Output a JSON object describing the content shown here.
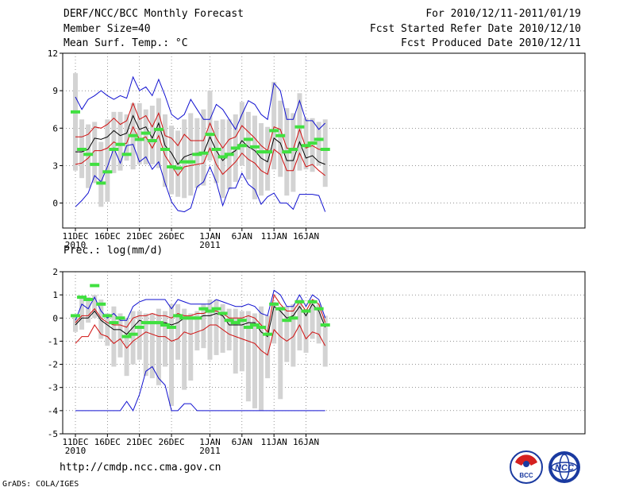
{
  "header": {
    "left": [
      "DERF/NCC/BCC Monthly Forecast",
      "Member Size=40",
      "Mean Surf. Temp.: °C"
    ],
    "right": [
      "For 2010/12/11-2011/01/19",
      "Fcst Started Refer Date 2010/12/10",
      "Fcst Produced Date 2010/12/11"
    ]
  },
  "prec_label": "Prec.: log(mm/d)",
  "footer": {
    "url": "http://cmdp.ncc.cma.gov.cn",
    "grads": "GrADS: COLA/IGES"
  },
  "logos": {
    "bcc": "BCC",
    "ncc": "NCC"
  },
  "colors": {
    "max_min": "#1010d0",
    "pct": "#d01010",
    "median": "#000000",
    "bar": "#d3d3d3",
    "obs": "#40e040",
    "grid": "#555555"
  },
  "x_ticks": [
    {
      "day": 0,
      "label": "11DEC",
      "sub": "2010"
    },
    {
      "day": 5,
      "label": "16DEC",
      "sub": ""
    },
    {
      "day": 10,
      "label": "21DEC",
      "sub": ""
    },
    {
      "day": 15,
      "label": "26DEC",
      "sub": ""
    },
    {
      "day": 21,
      "label": "1JAN",
      "sub": "2011"
    },
    {
      "day": 26,
      "label": "6JAN",
      "sub": ""
    },
    {
      "day": 31,
      "label": "11JAN",
      "sub": ""
    },
    {
      "day": 36,
      "label": "16JAN",
      "sub": ""
    }
  ],
  "chart_data": [
    {
      "type": "box-line",
      "title": "Mean Surf. Temp.: °C",
      "ylim": [
        -2,
        12
      ],
      "yticks": [
        0,
        3,
        6,
        9,
        12
      ],
      "days": 40,
      "series": [
        {
          "name": "max",
          "values": [
            8.5,
            7.5,
            8.3,
            8.6,
            9.0,
            8.6,
            8.3,
            8.6,
            8.4,
            10.1,
            9.0,
            9.3,
            8.6,
            9.9,
            8.6,
            7.1,
            6.7,
            7.1,
            8.3,
            7.5,
            6.7,
            6.7,
            7.9,
            7.5,
            6.7,
            5.9,
            7.1,
            8.2,
            7.9,
            7.1,
            6.7,
            9.6,
            9.0,
            6.7,
            6.7,
            8.2,
            6.6,
            6.6,
            5.9,
            6.4
          ]
        },
        {
          "name": "p90",
          "values": [
            5.3,
            5.3,
            5.5,
            6.1,
            6.0,
            6.3,
            6.8,
            6.3,
            6.6,
            8.0,
            6.7,
            7.0,
            6.1,
            7.2,
            5.4,
            5.2,
            4.6,
            5.5,
            5.0,
            5.0,
            5.0,
            6.4,
            5.2,
            4.4,
            5.1,
            5.3,
            6.2,
            5.7,
            5.2,
            4.6,
            4.2,
            6.1,
            5.9,
            4.4,
            4.3,
            5.9,
            4.4,
            4.6,
            4.3,
            4.3
          ]
        },
        {
          "name": "median",
          "values": [
            4.1,
            4.1,
            4.3,
            5.2,
            5.1,
            5.3,
            5.8,
            5.4,
            5.6,
            7.0,
            5.9,
            6.1,
            5.2,
            6.4,
            4.6,
            4.0,
            3.1,
            3.7,
            3.9,
            4.0,
            4.0,
            5.3,
            4.2,
            3.4,
            3.9,
            4.2,
            5.0,
            4.5,
            4.2,
            3.6,
            3.3,
            5.2,
            4.8,
            3.4,
            3.4,
            4.9,
            3.6,
            3.8,
            3.3,
            3.1
          ]
        },
        {
          "name": "p10",
          "values": [
            3.1,
            3.2,
            3.6,
            4.2,
            4.2,
            4.4,
            4.9,
            4.6,
            4.8,
            6.1,
            5.1,
            5.3,
            4.4,
            5.4,
            3.8,
            3.0,
            2.2,
            2.9,
            3.0,
            3.1,
            3.2,
            4.4,
            3.1,
            2.3,
            2.8,
            3.3,
            4.0,
            3.5,
            3.2,
            2.6,
            2.3,
            4.3,
            3.9,
            2.6,
            2.6,
            4.0,
            2.9,
            3.1,
            2.6,
            2.2
          ]
        },
        {
          "name": "min",
          "values": [
            -0.3,
            0.2,
            0.8,
            2.2,
            1.7,
            2.9,
            4.4,
            3.2,
            4.6,
            4.7,
            3.3,
            3.7,
            2.7,
            3.3,
            1.6,
            0.1,
            -0.6,
            -0.7,
            -0.4,
            1.3,
            1.7,
            2.9,
            1.7,
            -0.2,
            1.2,
            1.2,
            2.4,
            1.5,
            1.1,
            -0.1,
            0.5,
            0.8,
            0.0,
            0.0,
            -0.5,
            0.7,
            0.7,
            0.7,
            0.6,
            -0.7
          ]
        }
      ],
      "bars": [
        [
          2.6,
          10.4
        ],
        [
          2.0,
          6.7
        ],
        [
          1.2,
          6.3
        ],
        [
          1.6,
          6.5
        ],
        [
          -0.3,
          4.9
        ],
        [
          0.1,
          6.7
        ],
        [
          2.4,
          7.3
        ],
        [
          2.6,
          7.3
        ],
        [
          3.4,
          7.1
        ],
        [
          2.7,
          8.0
        ],
        [
          3.1,
          8.0
        ],
        [
          3.1,
          7.5
        ],
        [
          3.1,
          7.8
        ],
        [
          2.8,
          8.4
        ],
        [
          1.3,
          7.1
        ],
        [
          0.7,
          6.2
        ],
        [
          0.5,
          5.8
        ],
        [
          0.4,
          6.7
        ],
        [
          0.6,
          7.2
        ],
        [
          1.2,
          6.8
        ],
        [
          1.4,
          7.5
        ],
        [
          3.4,
          9.0
        ],
        [
          1.6,
          6.6
        ],
        [
          0.4,
          6.7
        ],
        [
          1.1,
          6.7
        ],
        [
          1.7,
          7.1
        ],
        [
          3.0,
          8.1
        ],
        [
          1.9,
          7.3
        ],
        [
          0.3,
          7.0
        ],
        [
          0.6,
          6.4
        ],
        [
          1.0,
          6.1
        ],
        [
          2.7,
          9.7
        ],
        [
          2.1,
          8.2
        ],
        [
          0.6,
          7.6
        ],
        [
          0.9,
          7.2
        ],
        [
          2.6,
          8.8
        ],
        [
          2.7,
          6.8
        ],
        [
          2.5,
          6.8
        ],
        [
          3.0,
          6.5
        ],
        [
          1.3,
          6.7
        ]
      ],
      "obs": [
        7.3,
        4.3,
        3.9,
        3.1,
        1.6,
        2.5,
        4.3,
        4.7,
        3.9,
        5.4,
        5.1,
        5.6,
        5.0,
        5.9,
        4.3,
        2.9,
        2.8,
        3.3,
        3.3,
        3.9,
        4.0,
        5.5,
        4.3,
        3.7,
        3.9,
        4.4,
        4.6,
        5.1,
        4.5,
        4.1,
        4.1,
        5.8,
        5.4,
        4.1,
        4.3,
        6.1,
        4.6,
        4.8,
        5.1,
        4.3
      ]
    },
    {
      "type": "box-line",
      "title": "Prec.: log(mm/d)",
      "ylim": [
        -5,
        2
      ],
      "yticks": [
        -5,
        -4,
        -3,
        -2,
        -1,
        0,
        1,
        2
      ],
      "days": 40,
      "series": [
        {
          "name": "max",
          "values": [
            -0.1,
            0.6,
            0.4,
            0.9,
            0.3,
            0.0,
            0.2,
            -0.1,
            -0.1,
            0.5,
            0.7,
            0.8,
            0.8,
            0.8,
            0.8,
            0.4,
            0.8,
            0.7,
            0.6,
            0.6,
            0.6,
            0.6,
            0.8,
            0.7,
            0.6,
            0.5,
            0.5,
            0.6,
            0.5,
            0.2,
            0.1,
            1.2,
            1.0,
            0.5,
            0.5,
            1.0,
            0.5,
            1.0,
            0.8,
            0.0
          ]
        },
        {
          "name": "p90",
          "values": [
            -0.2,
            0.1,
            0.1,
            0.4,
            0.0,
            -0.2,
            -0.3,
            -0.3,
            -0.4,
            0.0,
            0.1,
            0.1,
            0.2,
            0.1,
            0.1,
            0.0,
            0.2,
            0.1,
            0.1,
            0.2,
            0.2,
            0.3,
            0.3,
            0.2,
            0.0,
            0.0,
            0.0,
            0.1,
            0.0,
            -0.3,
            -0.6,
            1.0,
            0.6,
            0.3,
            0.3,
            0.7,
            0.3,
            0.8,
            0.6,
            -0.2
          ]
        },
        {
          "name": "median",
          "values": [
            -0.3,
            0.0,
            0.0,
            0.3,
            -0.1,
            -0.3,
            -0.5,
            -0.5,
            -0.7,
            -0.4,
            -0.1,
            -0.2,
            -0.2,
            -0.2,
            -0.2,
            -0.3,
            -0.2,
            0.0,
            0.0,
            0.0,
            0.1,
            0.1,
            0.2,
            0.1,
            -0.3,
            -0.3,
            -0.3,
            -0.2,
            -0.2,
            -0.6,
            -0.8,
            0.5,
            0.3,
            0.0,
            0.1,
            0.5,
            0.1,
            0.6,
            0.3,
            -0.4
          ]
        },
        {
          "name": "p10",
          "values": [
            -1.1,
            -0.8,
            -0.8,
            -0.3,
            -0.7,
            -0.8,
            -1.1,
            -0.9,
            -1.3,
            -1.0,
            -0.8,
            -0.6,
            -0.7,
            -0.8,
            -0.8,
            -1.0,
            -0.9,
            -0.6,
            -0.7,
            -0.6,
            -0.5,
            -0.3,
            -0.3,
            -0.5,
            -0.7,
            -0.8,
            -0.9,
            -1.0,
            -1.1,
            -1.4,
            -1.6,
            -0.5,
            -0.8,
            -1.0,
            -0.8,
            -0.3,
            -0.9,
            -0.6,
            -0.7,
            -1.2
          ]
        },
        {
          "name": "min",
          "values": [
            -4.0,
            -4.0,
            -4.0,
            -4.0,
            -4.0,
            -4.0,
            -4.0,
            -4.0,
            -3.6,
            -4.0,
            -3.3,
            -2.3,
            -2.1,
            -2.6,
            -2.9,
            -4.0,
            -4.0,
            -3.7,
            -3.7,
            -4.0,
            -4.0,
            -4.0,
            -4.0,
            -4.0,
            -4.0,
            -4.0,
            -4.0,
            -4.0,
            -4.0,
            -4.0,
            -4.0,
            -4.0,
            -4.0,
            -4.0,
            -4.0,
            -4.0,
            -4.0,
            -4.0,
            -4.0,
            -4.0
          ]
        }
      ],
      "bars": [
        [
          -0.6,
          0.1
        ],
        [
          -0.5,
          0.9
        ],
        [
          -0.2,
          0.9
        ],
        [
          0.0,
          1.0
        ],
        [
          -0.9,
          0.8
        ],
        [
          -1.2,
          0.2
        ],
        [
          -2.1,
          0.5
        ],
        [
          -1.7,
          0.2
        ],
        [
          -2.5,
          0.0
        ],
        [
          -2.0,
          0.3
        ],
        [
          -1.8,
          0.3
        ],
        [
          -2.5,
          0.2
        ],
        [
          -2.6,
          0.2
        ],
        [
          -2.9,
          0.4
        ],
        [
          -2.1,
          0.3
        ],
        [
          -3.8,
          0.6
        ],
        [
          -1.8,
          0.6
        ],
        [
          -3.1,
          0.4
        ],
        [
          -2.7,
          0.2
        ],
        [
          -1.4,
          0.3
        ],
        [
          -1.3,
          0.6
        ],
        [
          -1.8,
          0.8
        ],
        [
          -1.6,
          0.8
        ],
        [
          -1.5,
          0.6
        ],
        [
          -1.4,
          0.4
        ],
        [
          -2.4,
          0.4
        ],
        [
          -2.3,
          0.3
        ],
        [
          -3.6,
          0.3
        ],
        [
          -3.9,
          0.2
        ],
        [
          -4.0,
          0.5
        ],
        [
          -2.6,
          0.1
        ],
        [
          -1.1,
          0.7
        ],
        [
          -3.5,
          0.5
        ],
        [
          -1.9,
          0.5
        ],
        [
          -2.1,
          0.6
        ],
        [
          -1.4,
          0.8
        ],
        [
          -1.5,
          0.4
        ],
        [
          -0.9,
          0.8
        ],
        [
          -1.1,
          0.6
        ],
        [
          -2.1,
          0.1
        ]
      ],
      "obs": [
        0.1,
        0.9,
        0.8,
        1.4,
        0.6,
        0.1,
        -0.2,
        0.0,
        -0.8,
        -0.7,
        -0.4,
        -0.2,
        -0.2,
        -0.2,
        -0.3,
        -0.4,
        0.1,
        0.0,
        0.0,
        0.0,
        0.4,
        0.3,
        0.4,
        0.2,
        -0.1,
        -0.2,
        -0.1,
        -0.4,
        -0.3,
        -0.4,
        -0.7,
        0.6,
        0.4,
        -0.1,
        0.0,
        0.7,
        0.3,
        0.7,
        0.4,
        -0.3
      ]
    }
  ]
}
